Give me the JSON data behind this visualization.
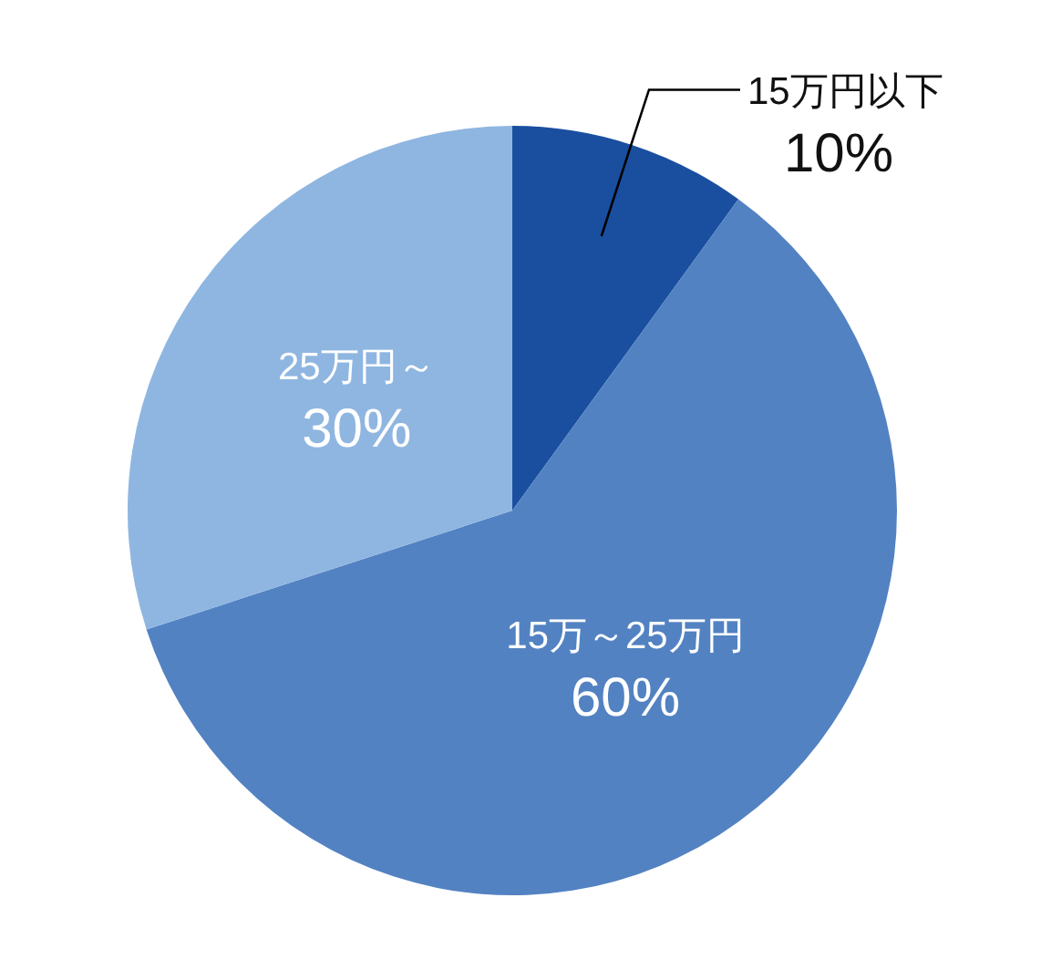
{
  "chart_data": {
    "type": "pie",
    "categories": [
      "15万円以下",
      "15万～25万円",
      "25万円～"
    ],
    "values": [
      10,
      60,
      30
    ],
    "colors": [
      "#1a4fa0",
      "#5282c2",
      "#8fb6e1"
    ],
    "value_labels": [
      "10%",
      "60%",
      "30%"
    ]
  }
}
